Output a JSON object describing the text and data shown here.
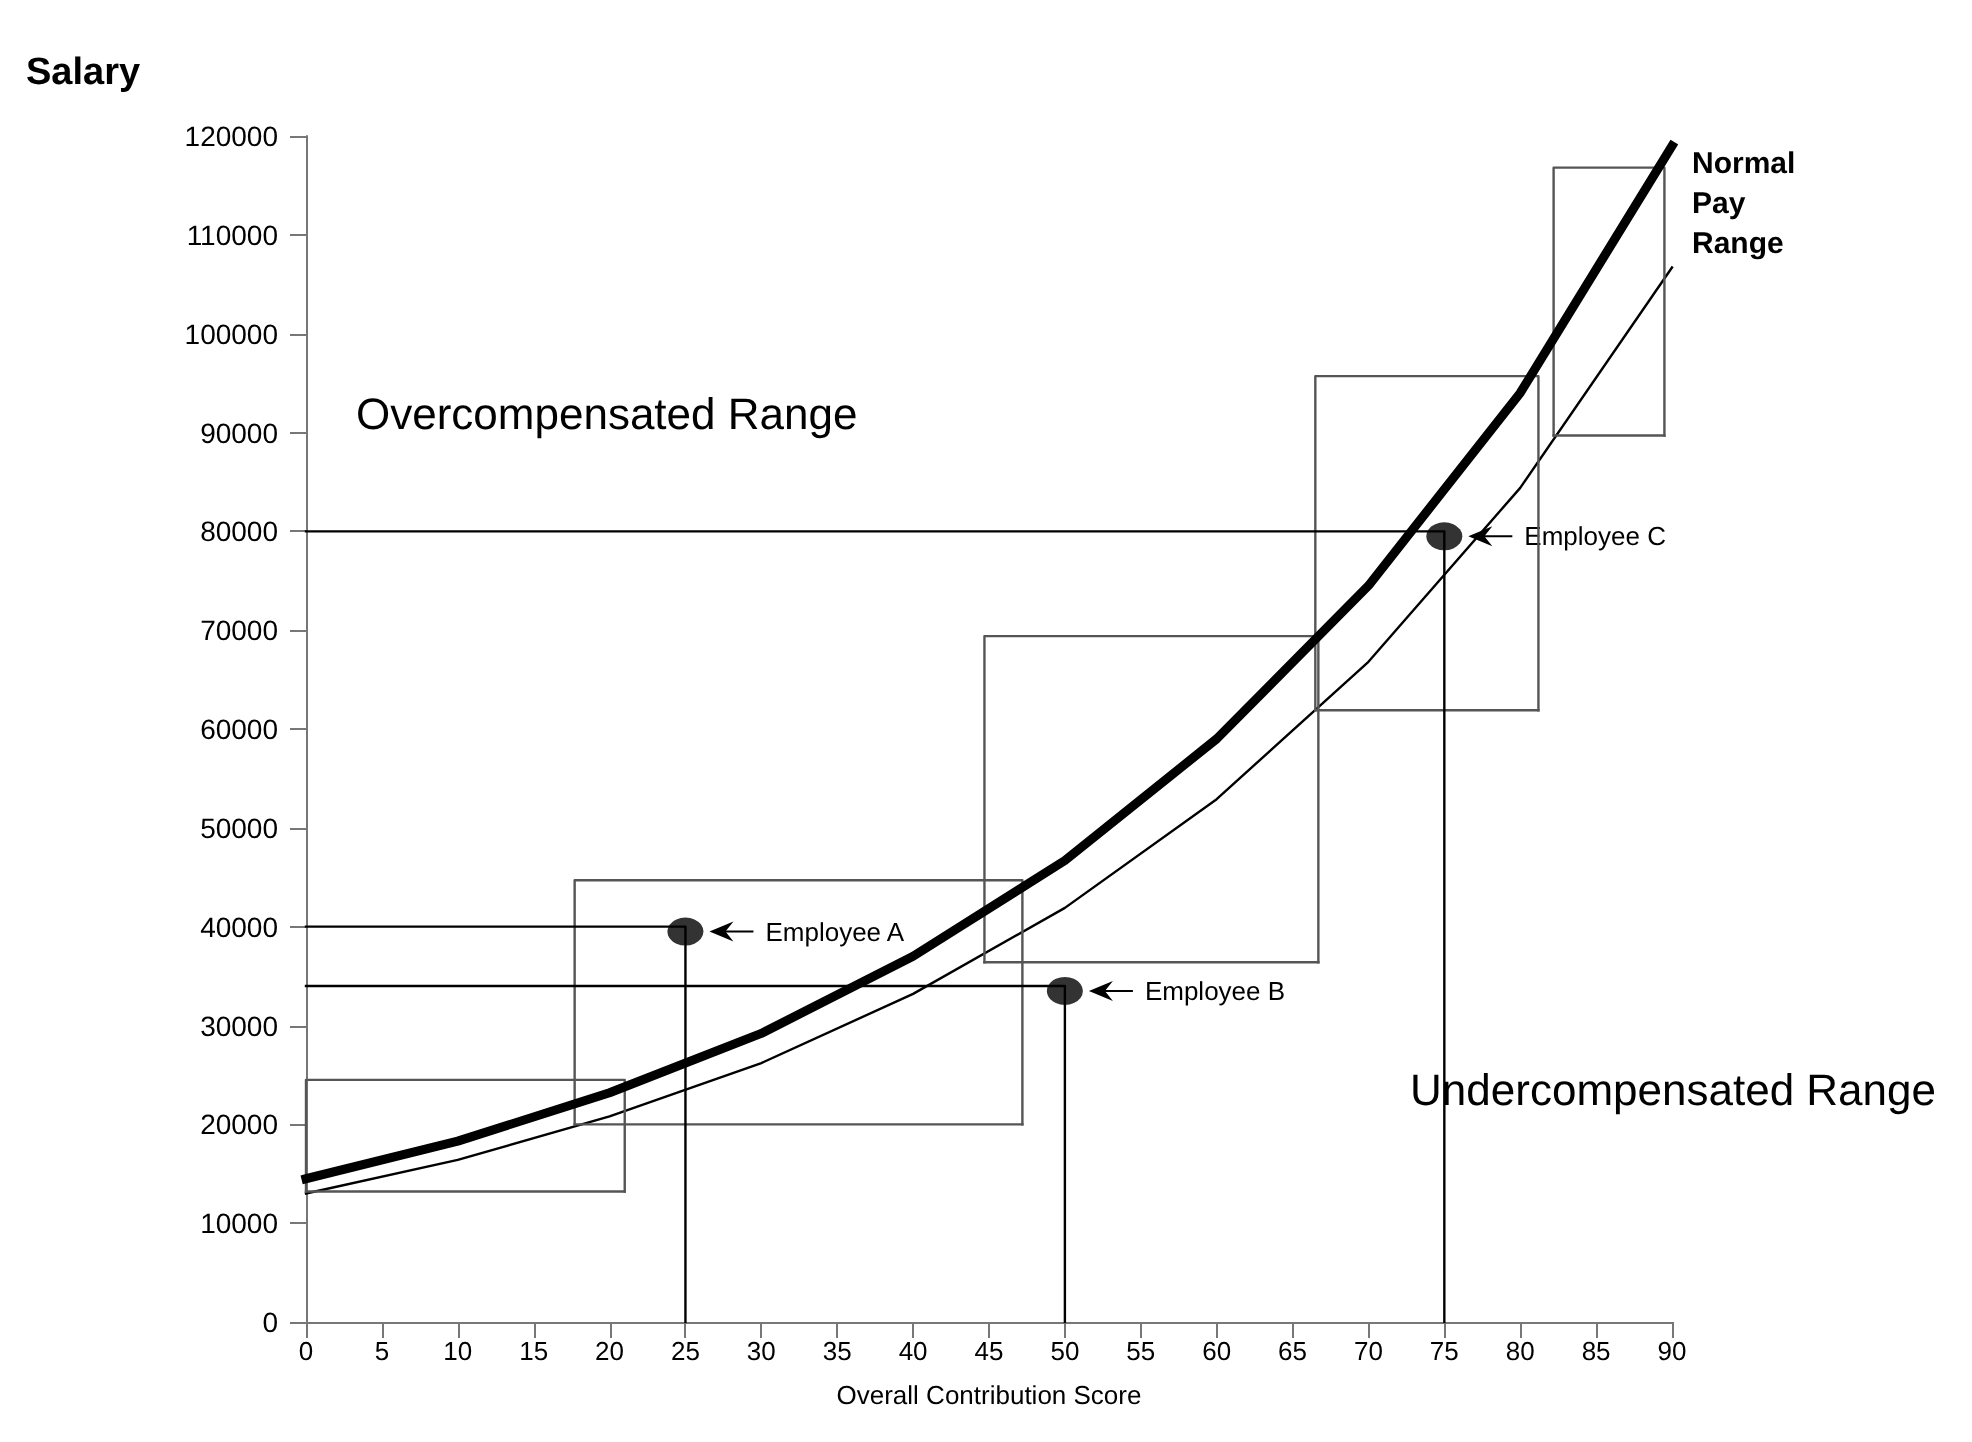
{
  "chart_data": {
    "type": "line",
    "ylabel": "Salary",
    "xlabel": "Overall Contribution Score",
    "xlim": [
      0,
      90
    ],
    "xticks": [
      0,
      5,
      10,
      15,
      20,
      25,
      30,
      35,
      40,
      45,
      50,
      55,
      60,
      65,
      70,
      75,
      80,
      85,
      90
    ],
    "ylim": [
      0,
      120000
    ],
    "yticks": [
      0,
      10000,
      20000,
      30000,
      40000,
      50000,
      60000,
      70000,
      80000,
      90000,
      100000,
      110000,
      120000
    ],
    "grid": false,
    "series": [
      {
        "color": "#000000",
        "x": [
          0,
          10,
          20,
          30,
          40,
          50,
          60,
          70,
          80,
          90
        ],
        "values": [
          14500,
          18300,
          23200,
          29200,
          37000,
          46700,
          59000,
          74500,
          94000,
          119000
        ]
      },
      {
        "color": "#000000",
        "x": [
          0,
          10,
          20,
          30,
          40,
          50,
          60,
          70,
          80,
          90
        ],
        "values": [
          13000,
          16400,
          20800,
          26200,
          33200,
          41900,
          52900,
          66800,
          84400,
          106700
        ]
      },
      {
        "color": "#555555",
        "x": [
          0,
          0,
          21,
          21
        ],
        "values": [
          13200,
          24500,
          24500,
          13200
        ]
      },
      {
        "color": "#555555",
        "x": [
          0,
          21
        ],
        "values": [
          13200,
          13200
        ]
      },
      {
        "color": "#555555",
        "x": [
          17.7,
          17.7,
          47.2,
          47.2
        ],
        "values": [
          20000,
          44700,
          44700,
          20000
        ]
      },
      {
        "color": "#555555",
        "x": [
          17.7,
          47.2
        ],
        "values": [
          20000,
          20000
        ]
      },
      {
        "color": "#555555",
        "x": [
          44.7,
          44.7,
          66.7,
          66.7
        ],
        "values": [
          36400,
          69400,
          69400,
          36400
        ]
      },
      {
        "color": "#555555",
        "x": [
          44.7,
          66.7
        ],
        "values": [
          36400,
          36400
        ]
      },
      {
        "color": "#555555",
        "x": [
          66.5,
          66.5,
          81.2,
          81.2
        ],
        "values": [
          61900,
          95700,
          95700,
          61900
        ]
      },
      {
        "color": "#555555",
        "x": [
          66.5,
          81.2
        ],
        "values": [
          61900,
          61900
        ]
      },
      {
        "color": "#555555",
        "x": [
          82.2,
          82.2,
          89.5,
          89.5
        ],
        "values": [
          89700,
          116800,
          116800,
          89700
        ]
      },
      {
        "color": "#555555",
        "x": [
          82.2,
          89.5
        ],
        "values": [
          89700,
          89700
        ]
      },
      {
        "color": "#000000",
        "x": [
          0,
          25,
          25
        ],
        "values": [
          40000,
          40000,
          0
        ]
      },
      {
        "color": "#000000",
        "x": [
          0,
          50,
          50
        ],
        "values": [
          34000,
          34000,
          0
        ]
      },
      {
        "color": "#000000",
        "x": [
          0,
          75,
          75
        ],
        "values": [
          80000,
          80000,
          0
        ]
      },
      {
        "type": "scatter",
        "marker": "circle",
        "color": "#000000",
        "x": [
          25,
          50,
          75
        ],
        "values": [
          39500,
          33500,
          79500
        ]
      }
    ],
    "annotations": [
      "Overcompensated Range",
      "Undercompensated Range",
      "Employee A",
      "Employee B",
      "Employee C",
      {
        "text": "Normal Pay Range",
        "x": 90,
        "y": 118000
      }
    ]
  }
}
